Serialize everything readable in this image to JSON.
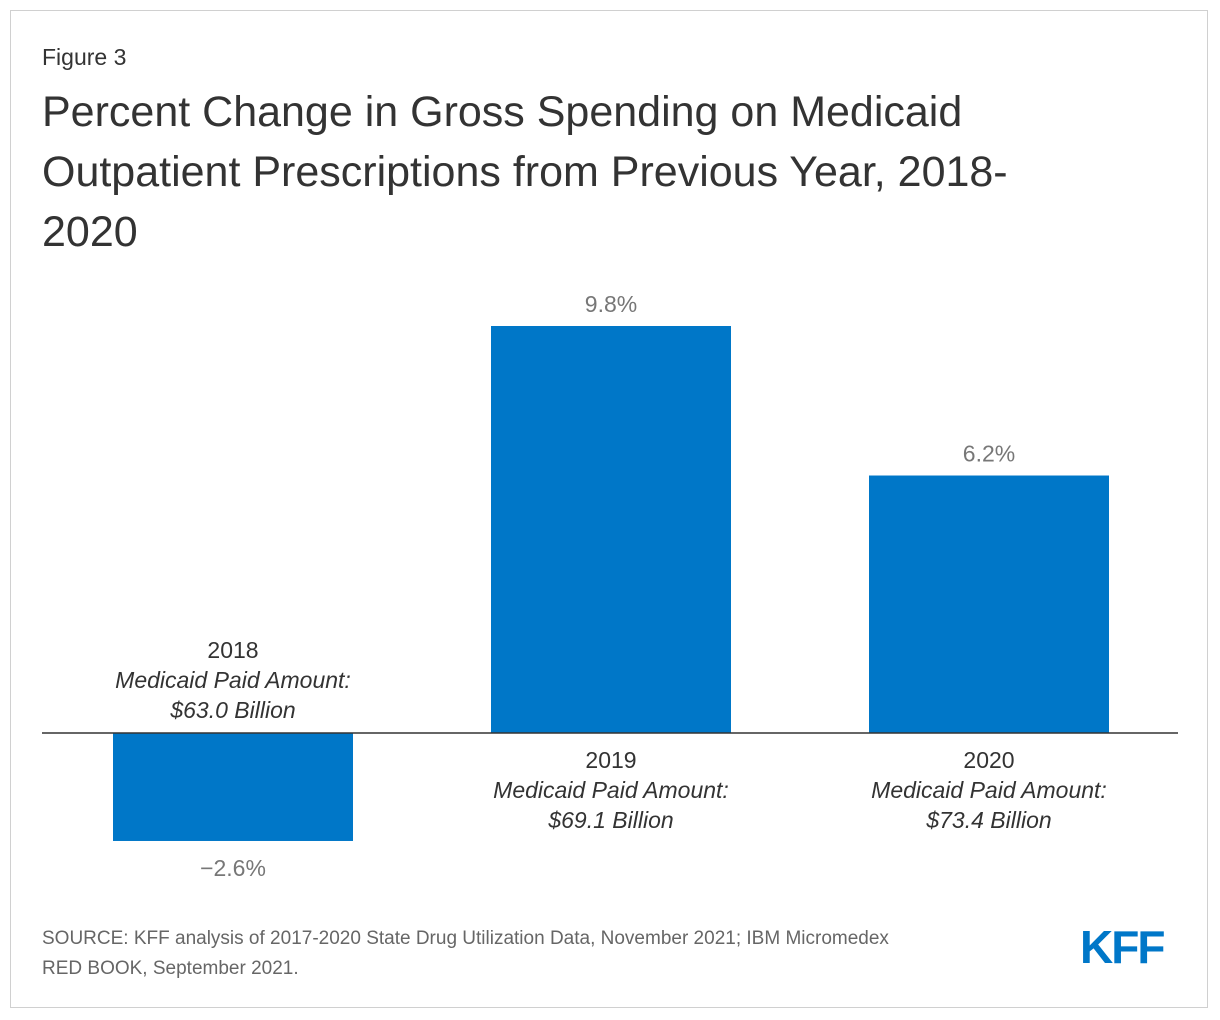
{
  "figure_label": "Figure 3",
  "title_lines": [
    "Percent Change in Gross Spending on Medicaid",
    "Outpatient Prescriptions from Previous Year, 2018-",
    "2020"
  ],
  "source_lines": [
    "SOURCE: KFF analysis of 2017-2020 State Drug Utilization Data, November 2021; IBM Micromedex",
    "RED BOOK, September 2021."
  ],
  "logo_text": "KFF",
  "colors": {
    "bar": "#0077c8",
    "logo": "#0077c8",
    "axis": "#333333",
    "value_label": "#777777"
  },
  "chart_data": {
    "type": "bar",
    "title": "Percent Change in Gross Spending on Medicaid Outpatient Prescriptions from Previous Year, 2018-2020",
    "xlabel": "",
    "ylabel": "",
    "ylim": [
      -2.6,
      9.8
    ],
    "grid": false,
    "categories": [
      "2018",
      "2019",
      "2020"
    ],
    "values": [
      -2.6,
      9.8,
      6.2
    ],
    "value_labels": [
      "−2.6%",
      "9.8%",
      "6.2%"
    ],
    "category_subtitle": "Medicaid Paid Amount:",
    "paid_amounts": [
      "$63.0 Billion",
      "$69.1 Billion",
      "$73.4 Billion"
    ]
  }
}
